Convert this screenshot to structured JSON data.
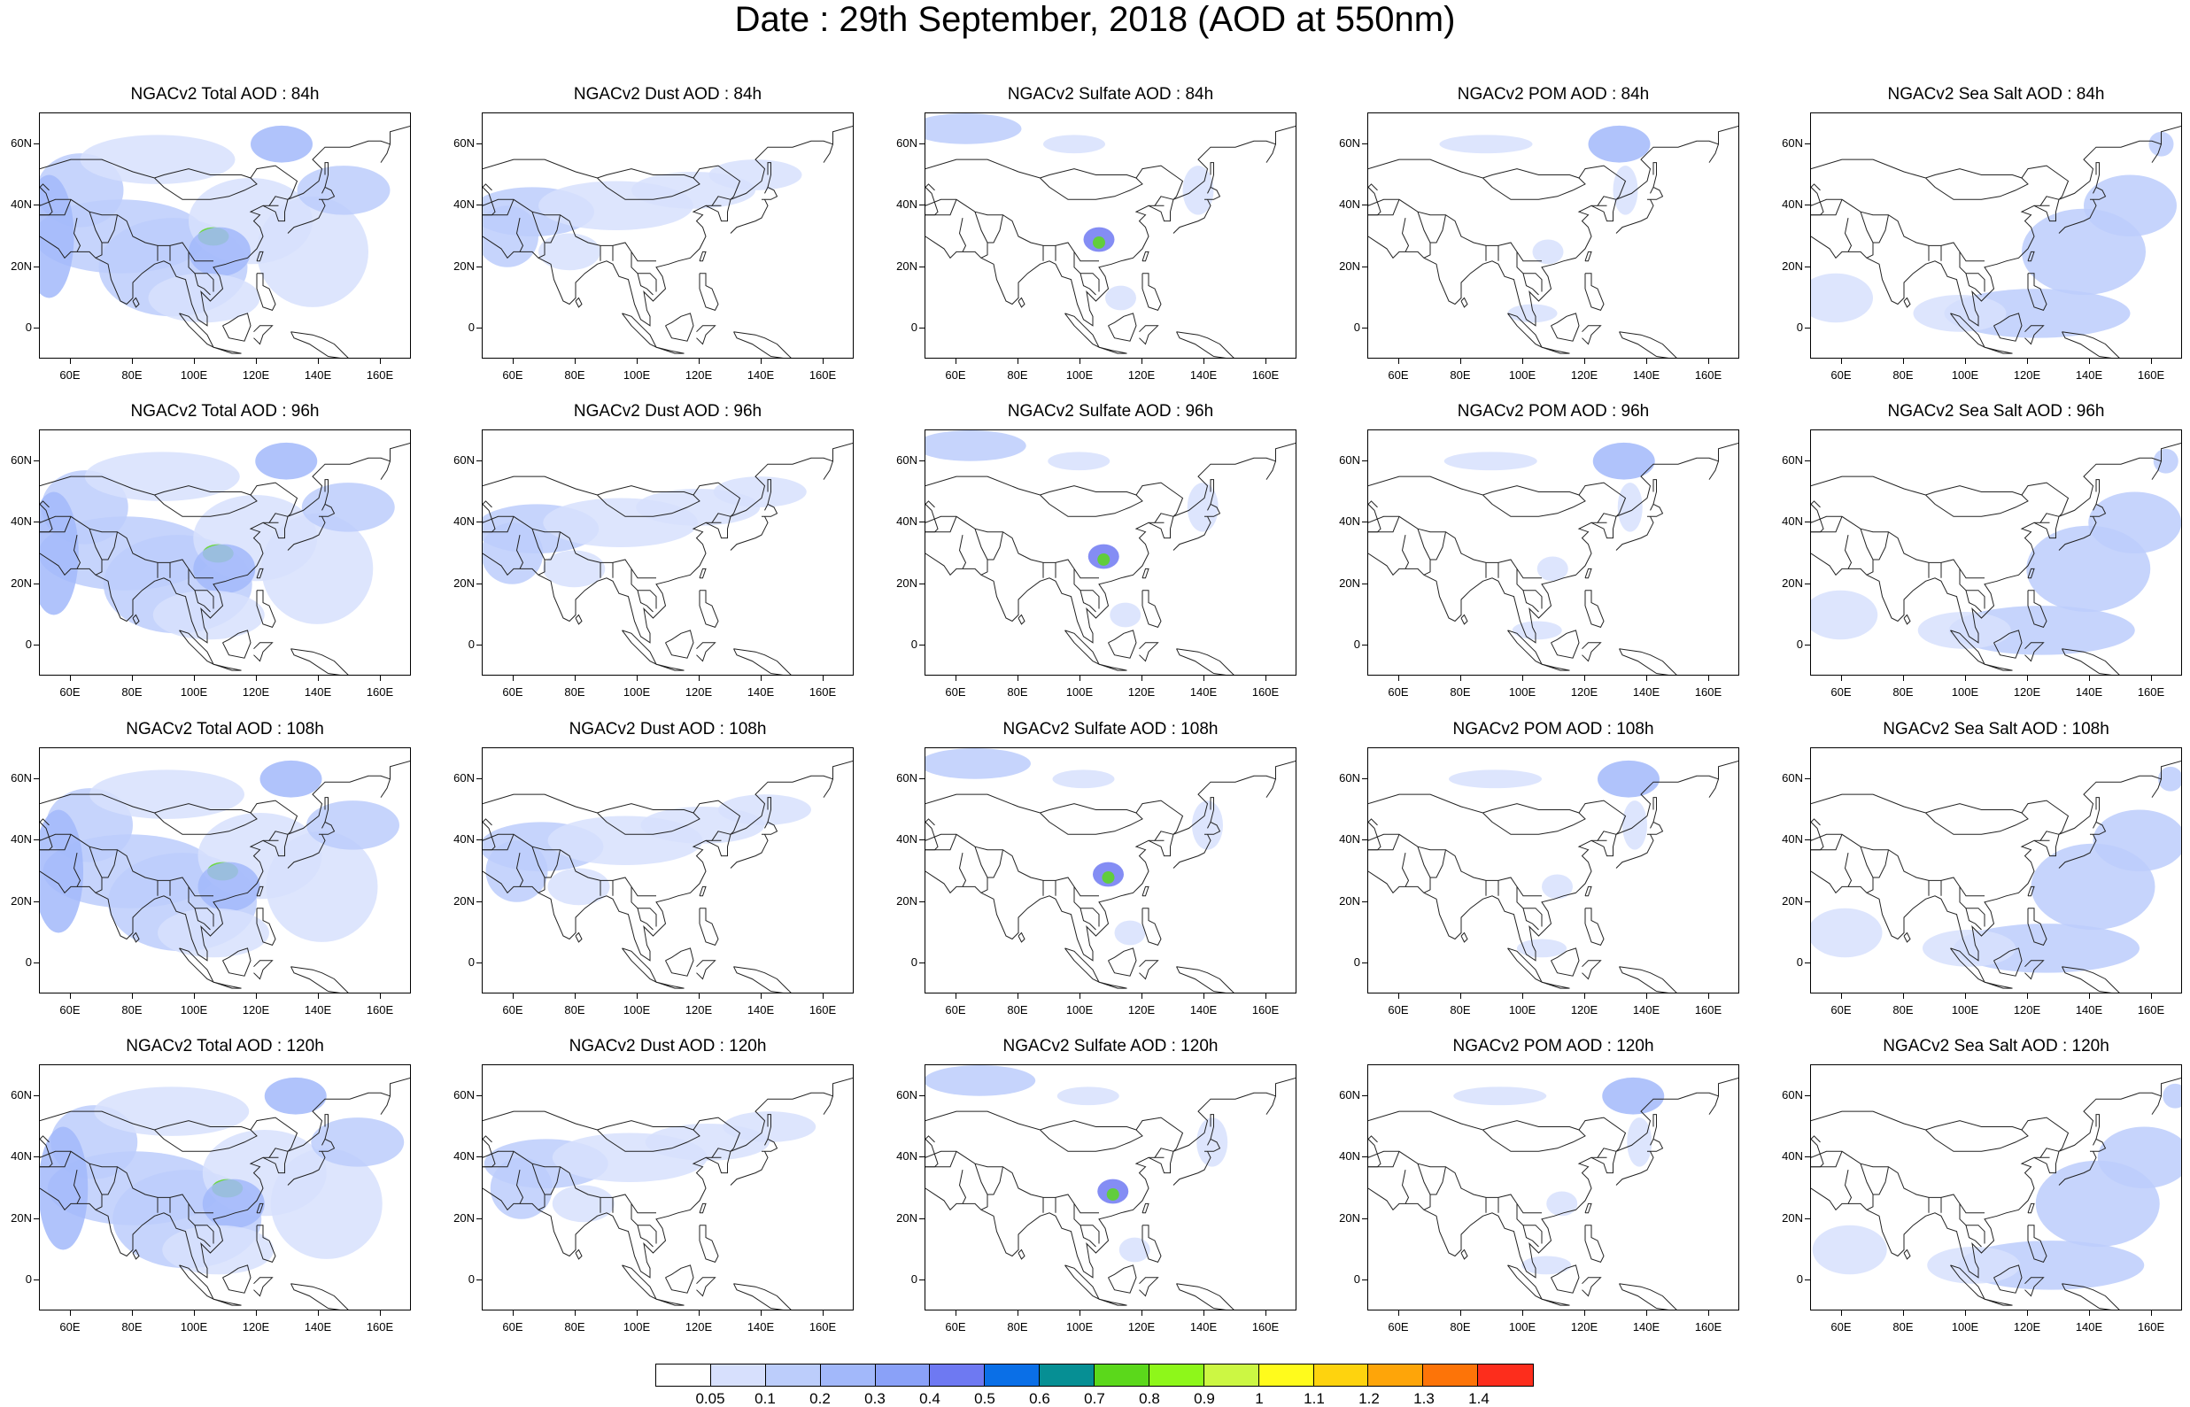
{
  "title": "Date : 29th September, 2018 (AOD at 550nm)",
  "rows": [
    "84h",
    "96h",
    "108h",
    "120h"
  ],
  "panels": [
    [
      {
        "title": "NGACv2 Total AOD : 84h",
        "species": "total"
      },
      {
        "title": "NGACv2 Dust AOD : 84h",
        "species": "dust"
      },
      {
        "title": "NGACv2 Sulfate AOD : 84h",
        "species": "sulfate"
      },
      {
        "title": "NGACv2 POM AOD : 84h",
        "species": "pom"
      },
      {
        "title": "NGACv2 Sea Salt AOD : 84h",
        "species": "seasalt"
      }
    ],
    [
      {
        "title": "NGACv2 Total AOD : 96h",
        "species": "total"
      },
      {
        "title": "NGACv2 Dust AOD : 96h",
        "species": "dust"
      },
      {
        "title": "NGACv2 Sulfate AOD : 96h",
        "species": "sulfate"
      },
      {
        "title": "NGACv2 POM AOD : 96h",
        "species": "pom"
      },
      {
        "title": "NGACv2 Sea Salt AOD : 96h",
        "species": "seasalt"
      }
    ],
    [
      {
        "title": "NGACv2 Total AOD : 108h",
        "species": "total"
      },
      {
        "title": "NGACv2 Dust AOD : 108h",
        "species": "dust"
      },
      {
        "title": "NGACv2 Sulfate AOD : 108h",
        "species": "sulfate"
      },
      {
        "title": "NGACv2 POM AOD : 108h",
        "species": "pom"
      },
      {
        "title": "NGACv2 Sea Salt AOD : 108h",
        "species": "seasalt"
      }
    ],
    [
      {
        "title": "NGACv2 Total AOD : 120h",
        "species": "total"
      },
      {
        "title": "NGACv2 Dust AOD : 120h",
        "species": "dust"
      },
      {
        "title": "NGACv2 Sulfate AOD : 120h",
        "species": "sulfate"
      },
      {
        "title": "NGACv2 POM AOD : 120h",
        "species": "pom"
      },
      {
        "title": "NGACv2 Sea Salt  AOD : 120h",
        "species": "seasalt"
      }
    ]
  ],
  "axes": {
    "lon_range": [
      50,
      170
    ],
    "lat_range": [
      -10,
      70
    ],
    "lon_ticks": [
      60,
      80,
      100,
      120,
      140,
      160
    ],
    "lon_tick_labels": [
      "60E",
      "80E",
      "100E",
      "120E",
      "140E",
      "160E"
    ],
    "lat_ticks": [
      0,
      20,
      40,
      60
    ],
    "lat_tick_labels": [
      "0",
      "20N",
      "40N",
      "60N"
    ]
  },
  "colorbar": {
    "labels": [
      "0.05",
      "0.1",
      "0.2",
      "0.3",
      "0.4",
      "0.5",
      "0.6",
      "0.7",
      "0.8",
      "0.9",
      "1",
      "1.1",
      "1.2",
      "1.3",
      "1.4"
    ],
    "colors": [
      "#ffffff",
      "#d7e0fd",
      "#bccdfb",
      "#a2b8fa",
      "#8aa1f8",
      "#6e79f2",
      "#0a6fe7",
      "#068f94",
      "#5bd81b",
      "#8ef71a",
      "#ccf743",
      "#fffb1c",
      "#fed30e",
      "#fea509",
      "#fd7408",
      "#fd2d1c"
    ]
  }
}
